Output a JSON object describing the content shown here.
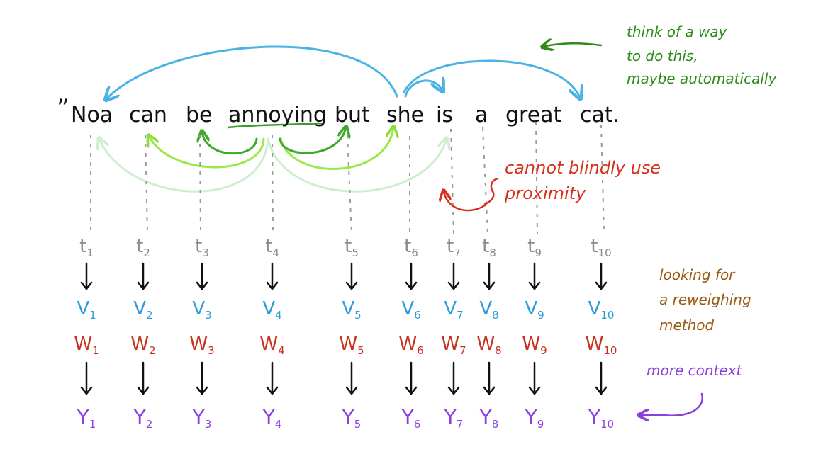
{
  "sentence": {
    "open_quote": "”",
    "words": [
      "Noa",
      "can",
      "be",
      "annoying",
      "but",
      "she",
      "is",
      "a",
      "great",
      "cat."
    ]
  },
  "tokens": [
    {
      "t": "t",
      "sub": "1",
      "v": "V",
      "w": "W",
      "y": "Y"
    },
    {
      "t": "t",
      "sub": "2",
      "v": "V",
      "w": "W",
      "y": "Y"
    },
    {
      "t": "t",
      "sub": "3",
      "v": "V",
      "w": "W",
      "y": "Y"
    },
    {
      "t": "t",
      "sub": "4",
      "v": "V",
      "w": "W",
      "y": "Y"
    },
    {
      "t": "t",
      "sub": "5",
      "v": "V",
      "w": "W",
      "y": "Y"
    },
    {
      "t": "t",
      "sub": "6",
      "v": "V",
      "w": "W",
      "y": "Y"
    },
    {
      "t": "t",
      "sub": "7",
      "v": "V",
      "w": "W",
      "y": "Y"
    },
    {
      "t": "t",
      "sub": "8",
      "v": "V",
      "w": "W",
      "y": "Y"
    },
    {
      "t": "t",
      "sub": "9",
      "v": "V",
      "w": "W",
      "y": "Y"
    },
    {
      "t": "t",
      "sub": "10",
      "v": "V",
      "w": "W",
      "y": "Y"
    }
  ],
  "notes": {
    "automatic": [
      "think of a way",
      "to do this,",
      "maybe automatically"
    ],
    "proximity": [
      "cannot blindly use",
      "proximity"
    ],
    "reweighing": [
      "looking for",
      "a reweighing",
      "method"
    ],
    "context": "more context"
  },
  "colors": {
    "ink": "#111111",
    "token_grey": "#8a8a8a",
    "v_blue": "#2f9bd6",
    "w_red": "#c8321f",
    "y_purple": "#8a3fe0",
    "note_green": "#2e8b1a",
    "note_red": "#d8301e",
    "note_brown": "#9a5a14",
    "note_purple": "#8a3fe0",
    "arc_blue": "#4ab3e3",
    "arc_green_dark": "#3faa2a",
    "arc_green_mid": "#9be84a",
    "arc_green_light": "#cfeed0",
    "underline_green": "#3a9c2a",
    "proximity_arrow": "#d8301e"
  }
}
